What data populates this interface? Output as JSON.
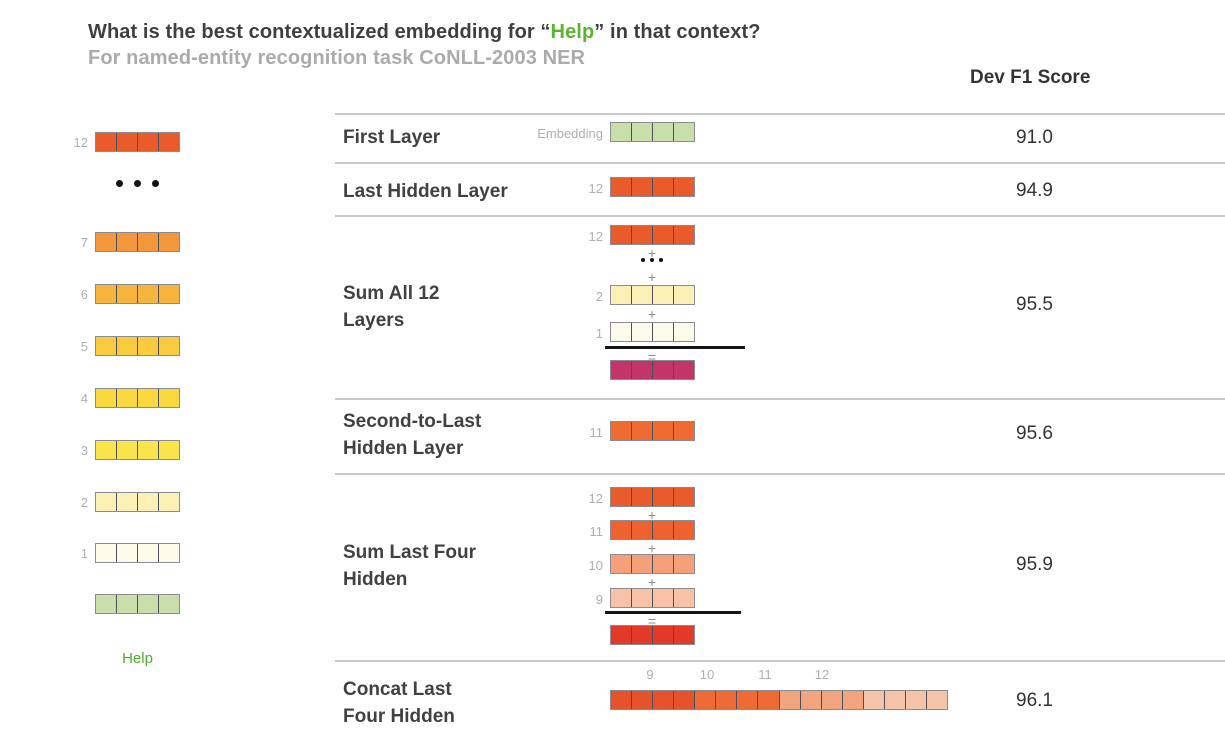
{
  "header": {
    "title_prefix": "What is the best contextualized embedding for “",
    "title_highlight": "Help",
    "title_suffix": "” in that context?",
    "subtitle": "For named-entity recognition task CoNLL-2003 NER",
    "score_column_header": "Dev F1 Score"
  },
  "operators": {
    "plus": "+",
    "equals": "="
  },
  "colors": {
    "title_text": "#3F3F3F",
    "subtitle_gray": "#ABABAB",
    "highlight_green": "#5AB431",
    "token_green": "#4FAE30",
    "embedding_green": "#C9DFA9",
    "label_gray": "#AFAFAF",
    "operator_gray": "#8C8C8C",
    "divider_gray": "#C9C9C9",
    "sum_all_result_magenta": "#C23566",
    "sum_four_result_red": "#E23A28"
  },
  "token_stack": {
    "token": "Help",
    "embedding_color": "#C9DFA9",
    "layers": [
      {
        "label": "12",
        "color": "#EA5B2B"
      },
      {
        "label": "7",
        "color": "#F2973B"
      },
      {
        "label": "6",
        "color": "#F6B53C"
      },
      {
        "label": "5",
        "color": "#F9CB3F"
      },
      {
        "label": "4",
        "color": "#FAD840"
      },
      {
        "label": "3",
        "color": "#FAE44C"
      },
      {
        "label": "2",
        "color": "#FBF0B5"
      },
      {
        "label": "1",
        "color": "#FCFAE8"
      }
    ]
  },
  "rows": [
    {
      "name_lines": [
        "First Layer"
      ],
      "score": "91.0",
      "diagram": {
        "type": "single",
        "label": "Embedding",
        "color": "#C9DFA9"
      }
    },
    {
      "name_lines": [
        "Last Hidden Layer"
      ],
      "score": "94.9",
      "diagram": {
        "type": "single",
        "label": "12",
        "color": "#EA5B2B"
      }
    },
    {
      "name_lines": [
        "Sum All 12",
        "Layers"
      ],
      "score": "95.5",
      "diagram": {
        "type": "sum",
        "has_dots": true,
        "result_color": "#C23566",
        "addends": [
          {
            "label": "12",
            "color": "#EA5B2B"
          },
          {
            "label": "2",
            "color": "#FBF0B5"
          },
          {
            "label": "1",
            "color": "#FCFAE8"
          }
        ]
      }
    },
    {
      "name_lines": [
        "Second-to-Last",
        "Hidden Layer"
      ],
      "score": "95.6",
      "diagram": {
        "type": "single",
        "label": "11",
        "color": "#EF6B31"
      }
    },
    {
      "name_lines": [
        "Sum Last Four",
        "Hidden"
      ],
      "score": "95.9",
      "diagram": {
        "type": "sum",
        "has_dots": false,
        "result_color": "#E23A28",
        "addends": [
          {
            "label": "12",
            "color": "#EA5B2B"
          },
          {
            "label": "11",
            "color": "#EE6230"
          },
          {
            "label": "10",
            "color": "#F4A17A"
          },
          {
            "label": "9",
            "color": "#F7C2A5"
          }
        ]
      }
    },
    {
      "name_lines": [
        "Concat Last",
        "Four Hidden"
      ],
      "score": "96.1",
      "diagram": {
        "type": "concat",
        "group_labels": [
          "9",
          "10",
          "11",
          "12"
        ],
        "group_colors": [
          "#E5532D",
          "#EF6B35",
          "#F2A47E",
          "#F5C3A8"
        ],
        "cells_per_group": 4
      }
    }
  ]
}
